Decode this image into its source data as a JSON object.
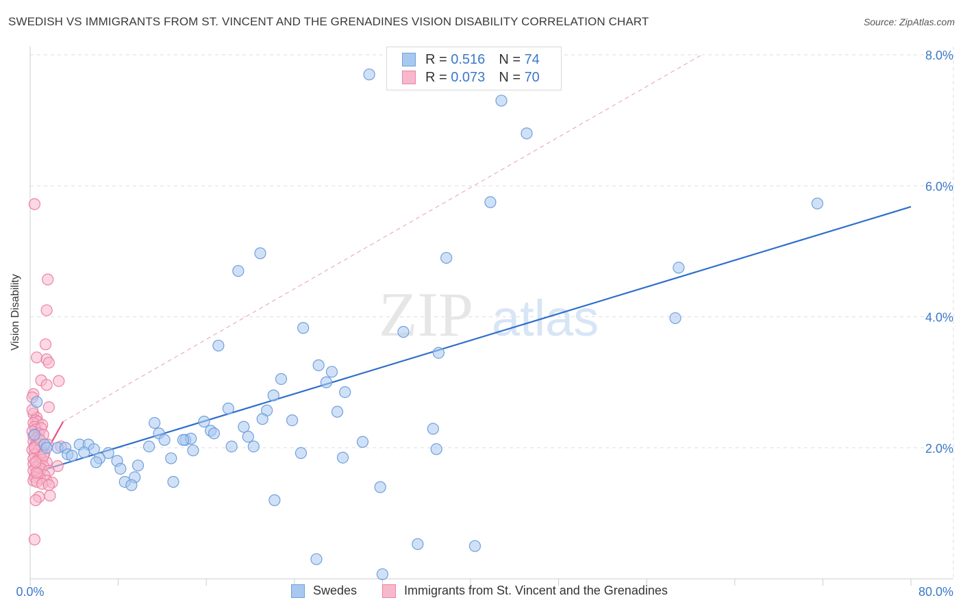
{
  "header": {
    "title": "SWEDISH VS IMMIGRANTS FROM ST. VINCENT AND THE GRENADINES VISION DISABILITY CORRELATION CHART",
    "source": "Source: ZipAtlas.com"
  },
  "legend": {
    "rows": [
      {
        "r_label": "R =",
        "r_value": "0.516",
        "n_label": "N =",
        "n_value": "74"
      },
      {
        "r_label": "R =",
        "r_value": "0.073",
        "n_label": "N =",
        "n_value": "70"
      }
    ]
  },
  "watermark": {
    "zip": "ZIP",
    "atlas": "atlas"
  },
  "colors": {
    "swedes_fill": "#a9c8f0",
    "swedes_stroke": "#6f9fdc",
    "swedes_line": "#2e6fca",
    "immig_fill": "#f7b8cc",
    "immig_stroke": "#ea82a4",
    "immig_line": "#e5507d",
    "grid": "#dddddd",
    "tick_text": "#3a78c9"
  },
  "chart_data": {
    "type": "scatter",
    "title": "SWEDISH VS IMMIGRANTS FROM ST. VINCENT AND THE GRENADINES VISION DISABILITY CORRELATION CHART",
    "xlabel": "",
    "ylabel": "Vision Disability",
    "xlim": [
      0,
      80
    ],
    "ylim": [
      0,
      8.3
    ],
    "x_tick_labels": [
      "0.0%",
      "80.0%"
    ],
    "y_ticks": [
      2,
      4,
      6,
      8
    ],
    "y_tick_labels": [
      "2.0%",
      "4.0%",
      "6.0%",
      "8.0%"
    ],
    "grid": true,
    "legend_position": "top-center",
    "series": [
      {
        "name": "Swedes",
        "r": 0.516,
        "n": 74,
        "trend": {
          "x": [
            0,
            80
          ],
          "y": [
            1.6,
            5.68
          ]
        },
        "points": [
          [
            30.8,
            7.7
          ],
          [
            42.8,
            7.3
          ],
          [
            45.1,
            6.8
          ],
          [
            41.8,
            5.75
          ],
          [
            71.5,
            5.73
          ],
          [
            20.9,
            4.97
          ],
          [
            18.9,
            4.7
          ],
          [
            37.8,
            4.9
          ],
          [
            58.9,
            4.75
          ],
          [
            58.6,
            3.98
          ],
          [
            24.8,
            3.83
          ],
          [
            33.9,
            3.77
          ],
          [
            37.1,
            3.45
          ],
          [
            17.1,
            3.56
          ],
          [
            26.2,
            3.26
          ],
          [
            27.4,
            3.16
          ],
          [
            22.8,
            3.05
          ],
          [
            26.9,
            3.0
          ],
          [
            28.6,
            2.85
          ],
          [
            22.1,
            2.8
          ],
          [
            18.0,
            2.6
          ],
          [
            21.5,
            2.57
          ],
          [
            27.9,
            2.55
          ],
          [
            15.8,
            2.4
          ],
          [
            21.1,
            2.44
          ],
          [
            23.8,
            2.42
          ],
          [
            11.3,
            2.38
          ],
          [
            19.4,
            2.32
          ],
          [
            16.4,
            2.26
          ],
          [
            36.6,
            2.29
          ],
          [
            11.7,
            2.22
          ],
          [
            16.7,
            2.22
          ],
          [
            19.8,
            2.17
          ],
          [
            12.2,
            2.12
          ],
          [
            14.1,
            2.12
          ],
          [
            14.6,
            2.14
          ],
          [
            13.9,
            2.12
          ],
          [
            30.2,
            2.09
          ],
          [
            4.5,
            2.05
          ],
          [
            5.3,
            2.05
          ],
          [
            1.3,
            2.05
          ],
          [
            1.5,
            2.0
          ],
          [
            2.5,
            2.0
          ],
          [
            3.2,
            2.0
          ],
          [
            5.8,
            1.98
          ],
          [
            10.8,
            2.02
          ],
          [
            18.3,
            2.02
          ],
          [
            20.3,
            2.02
          ],
          [
            14.8,
            1.96
          ],
          [
            4.9,
            1.93
          ],
          [
            36.9,
            1.98
          ],
          [
            3.4,
            1.9
          ],
          [
            7.1,
            1.92
          ],
          [
            24.6,
            1.92
          ],
          [
            3.8,
            1.88
          ],
          [
            6.3,
            1.84
          ],
          [
            28.4,
            1.85
          ],
          [
            12.8,
            1.84
          ],
          [
            7.9,
            1.8
          ],
          [
            6.0,
            1.78
          ],
          [
            9.8,
            1.73
          ],
          [
            8.2,
            1.68
          ],
          [
            9.5,
            1.55
          ],
          [
            8.6,
            1.48
          ],
          [
            13.0,
            1.48
          ],
          [
            9.2,
            1.43
          ],
          [
            31.8,
            1.4
          ],
          [
            22.2,
            1.2
          ],
          [
            35.2,
            0.53
          ],
          [
            40.4,
            0.5
          ],
          [
            26.0,
            0.3
          ],
          [
            32.0,
            0.07
          ],
          [
            0.6,
            2.7
          ],
          [
            0.4,
            2.2
          ]
        ]
      },
      {
        "name": "Immigrants from St. Vincent and the Grenadines",
        "r": 0.073,
        "n": 70,
        "trend": {
          "x": [
            0,
            3
          ],
          "y": [
            1.5,
            2.4
          ]
        },
        "extended_trend": {
          "x": [
            3,
            61
          ],
          "y": [
            2.4,
            8.0
          ]
        },
        "points": [
          [
            0.4,
            5.72
          ],
          [
            1.6,
            4.57
          ],
          [
            1.5,
            4.1
          ],
          [
            1.4,
            3.58
          ],
          [
            0.6,
            3.38
          ],
          [
            1.5,
            3.35
          ],
          [
            1.7,
            3.3
          ],
          [
            1.0,
            3.03
          ],
          [
            2.6,
            3.02
          ],
          [
            1.5,
            2.96
          ],
          [
            0.3,
            2.82
          ],
          [
            0.2,
            2.77
          ],
          [
            1.7,
            2.62
          ],
          [
            0.3,
            2.52
          ],
          [
            0.6,
            2.46
          ],
          [
            0.5,
            2.42
          ],
          [
            0.7,
            2.4
          ],
          [
            0.3,
            2.38
          ],
          [
            1.1,
            2.35
          ],
          [
            0.4,
            2.32
          ],
          [
            0.5,
            2.28
          ],
          [
            1.0,
            2.3
          ],
          [
            0.2,
            2.25
          ],
          [
            0.8,
            2.22
          ],
          [
            0.3,
            2.18
          ],
          [
            0.6,
            2.15
          ],
          [
            1.2,
            2.2
          ],
          [
            0.3,
            2.1
          ],
          [
            0.6,
            2.07
          ],
          [
            0.4,
            2.02
          ],
          [
            1.0,
            2.0
          ],
          [
            1.6,
            2.05
          ],
          [
            2.8,
            2.02
          ],
          [
            0.2,
            1.97
          ],
          [
            0.7,
            1.95
          ],
          [
            1.3,
            1.92
          ],
          [
            0.4,
            1.9
          ],
          [
            0.9,
            1.87
          ],
          [
            0.3,
            1.83
          ],
          [
            1.1,
            1.82
          ],
          [
            0.6,
            1.8
          ],
          [
            1.5,
            1.78
          ],
          [
            0.3,
            1.75
          ],
          [
            0.8,
            1.74
          ],
          [
            1.2,
            1.72
          ],
          [
            2.5,
            1.72
          ],
          [
            0.5,
            1.7
          ],
          [
            1.0,
            1.68
          ],
          [
            0.3,
            1.65
          ],
          [
            1.7,
            1.65
          ],
          [
            0.7,
            1.6
          ],
          [
            1.3,
            1.58
          ],
          [
            0.4,
            1.55
          ],
          [
            0.9,
            1.53
          ],
          [
            1.5,
            1.5
          ],
          [
            0.3,
            1.5
          ],
          [
            0.6,
            1.48
          ],
          [
            2.0,
            1.47
          ],
          [
            1.1,
            1.45
          ],
          [
            1.7,
            1.43
          ],
          [
            0.8,
            1.25
          ],
          [
            1.8,
            1.27
          ],
          [
            0.5,
            1.2
          ],
          [
            0.4,
            0.6
          ],
          [
            0.2,
            2.58
          ],
          [
            0.4,
            2.0
          ],
          [
            0.6,
            1.62
          ],
          [
            0.9,
            2.12
          ],
          [
            1.2,
            1.88
          ],
          [
            0.5,
            1.78
          ]
        ]
      }
    ]
  },
  "bottom_legend": {
    "swedes": "Swedes",
    "immigrants": "Immigrants from St. Vincent and the Grenadines"
  }
}
